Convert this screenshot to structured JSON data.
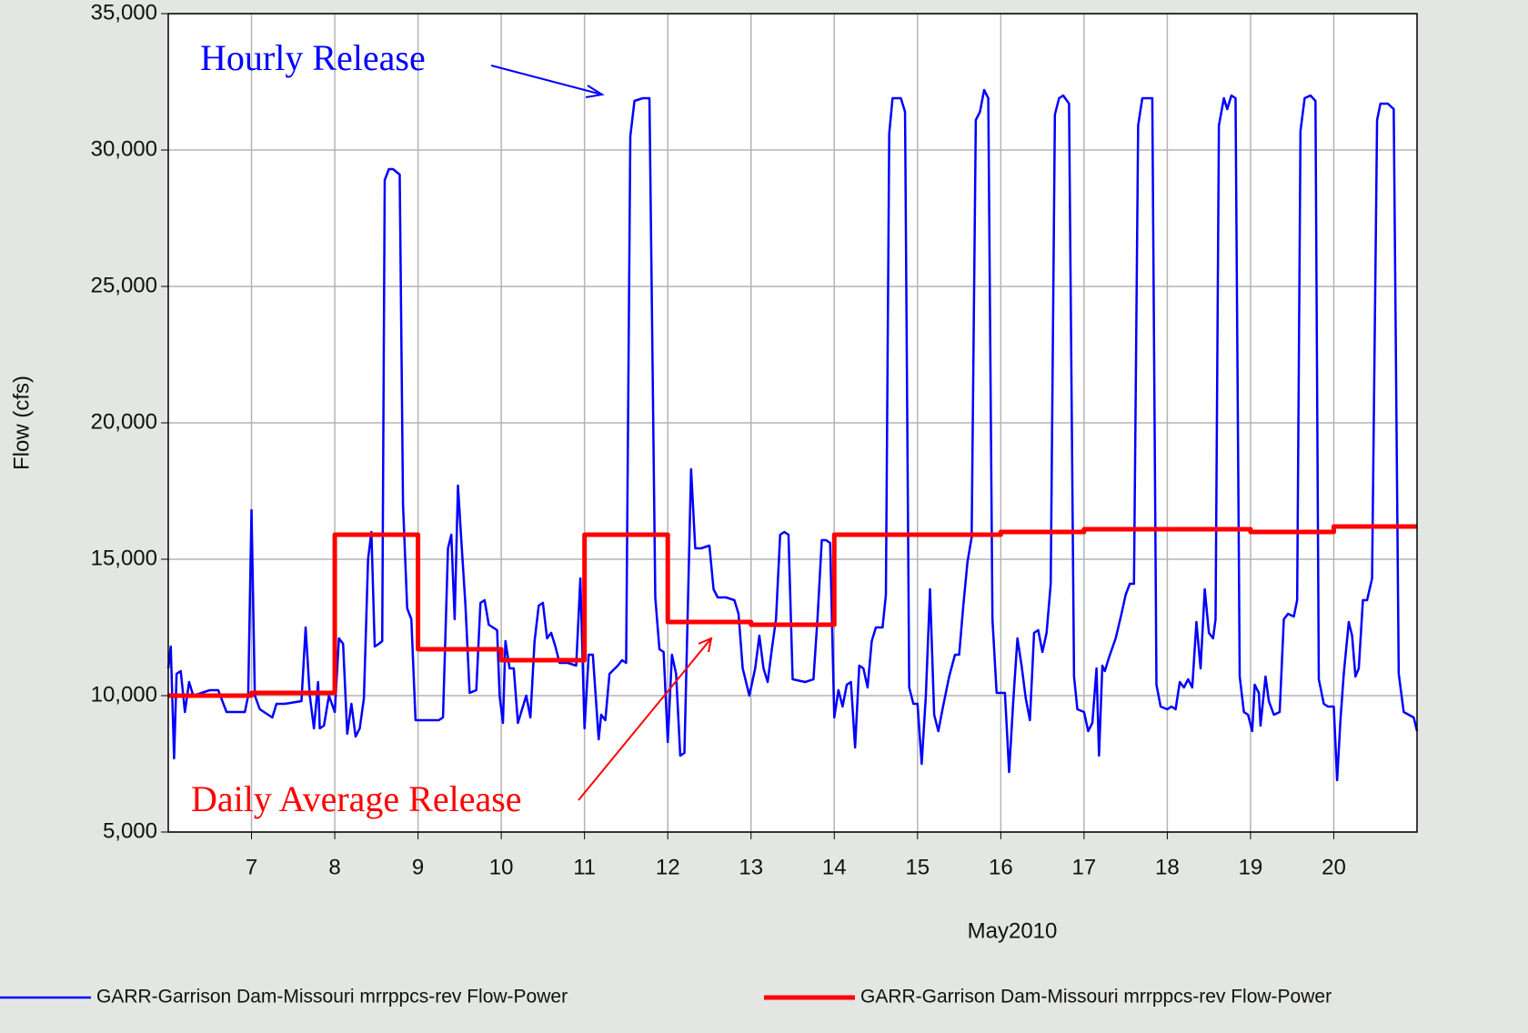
{
  "chart_data": {
    "type": "line",
    "ylabel": "Flow  (cfs)",
    "xlabel": "May2010",
    "xlim": [
      6,
      21
    ],
    "xticks": [
      7,
      8,
      9,
      10,
      11,
      12,
      13,
      14,
      15,
      16,
      17,
      18,
      19,
      20
    ],
    "ylim": [
      5000,
      35000
    ],
    "yticks": [
      {
        "value": 5000,
        "label": "5,000"
      },
      {
        "value": 10000,
        "label": "10,000"
      },
      {
        "value": 15000,
        "label": "15,000"
      },
      {
        "value": 20000,
        "label": "20,000"
      },
      {
        "value": 25000,
        "label": "25,000"
      },
      {
        "value": 30000,
        "label": "30,000"
      },
      {
        "value": 35000,
        "label": "35,000"
      }
    ],
    "grid": true,
    "annotations": [
      {
        "text": "Hourly Release",
        "color": "#0000ff"
      },
      {
        "text": "Daily Average Release",
        "color": "#ff0000"
      }
    ],
    "series": [
      {
        "name": "GARR-Garrison Dam-Missouri mrrppcs-rev Flow-Power",
        "color": "#0000ff",
        "width": 2.5,
        "x": [
          6.0,
          6.03,
          6.07,
          6.1,
          6.15,
          6.2,
          6.25,
          6.3,
          6.4,
          6.5,
          6.6,
          6.7,
          6.8,
          6.92,
          6.96,
          7.0,
          7.04,
          7.1,
          7.2,
          7.25,
          7.3,
          7.4,
          7.6,
          7.65,
          7.7,
          7.75,
          7.8,
          7.82,
          7.87,
          7.93,
          8.0,
          8.05,
          8.1,
          8.15,
          8.2,
          8.25,
          8.3,
          8.35,
          8.4,
          8.44,
          8.48,
          8.53,
          8.57,
          8.6,
          8.65,
          8.7,
          8.78,
          8.82,
          8.87,
          8.92,
          8.97,
          9.1,
          9.25,
          9.3,
          9.36,
          9.4,
          9.44,
          9.48,
          9.52,
          9.57,
          9.62,
          9.7,
          9.75,
          9.8,
          9.85,
          9.9,
          9.95,
          9.98,
          10.02,
          10.05,
          10.1,
          10.15,
          10.2,
          10.25,
          10.3,
          10.35,
          10.4,
          10.45,
          10.5,
          10.55,
          10.6,
          10.65,
          10.7,
          10.8,
          10.9,
          10.95,
          11.0,
          11.05,
          11.1,
          11.17,
          11.2,
          11.25,
          11.3,
          11.4,
          11.45,
          11.5,
          11.55,
          11.6,
          11.7,
          11.78,
          11.85,
          11.9,
          11.95,
          12.0,
          12.05,
          12.1,
          12.15,
          12.2,
          12.28,
          12.33,
          12.4,
          12.5,
          12.55,
          12.6,
          12.7,
          12.8,
          12.85,
          12.9,
          12.98,
          13.05,
          13.1,
          13.15,
          13.2,
          13.25,
          13.3,
          13.35,
          13.4,
          13.45,
          13.5,
          13.65,
          13.75,
          13.8,
          13.85,
          13.9,
          13.95,
          14.0,
          14.05,
          14.1,
          14.15,
          14.2,
          14.25,
          14.3,
          14.35,
          14.4,
          14.45,
          14.5,
          14.58,
          14.62,
          14.66,
          14.7,
          14.8,
          14.85,
          14.9,
          14.95,
          15.0,
          15.05,
          15.1,
          15.15,
          15.2,
          15.25,
          15.3,
          15.38,
          15.45,
          15.5,
          15.55,
          15.6,
          15.65,
          15.7,
          15.75,
          15.8,
          15.85,
          15.9,
          15.95,
          16.05,
          16.1,
          16.15,
          16.2,
          16.25,
          16.3,
          16.35,
          16.4,
          16.45,
          16.5,
          16.55,
          16.6,
          16.65,
          16.7,
          16.75,
          16.82,
          16.88,
          16.92,
          17.0,
          17.05,
          17.1,
          17.15,
          17.18,
          17.22,
          17.25,
          17.3,
          17.38,
          17.45,
          17.5,
          17.55,
          17.6,
          17.65,
          17.7,
          17.75,
          17.82,
          17.87,
          17.92,
          18.0,
          18.05,
          18.1,
          18.15,
          18.2,
          18.25,
          18.3,
          18.35,
          18.4,
          18.45,
          18.5,
          18.55,
          18.58,
          18.62,
          18.68,
          18.72,
          18.77,
          18.82,
          18.87,
          18.92,
          18.97,
          19.02,
          19.05,
          19.1,
          19.12,
          19.18,
          19.22,
          19.28,
          19.35,
          19.4,
          19.45,
          19.52,
          19.56,
          19.6,
          19.65,
          19.72,
          19.78,
          19.82,
          19.88,
          19.93,
          20.0,
          20.04,
          20.08,
          20.12,
          20.18,
          20.22,
          20.26,
          20.3,
          20.35,
          20.4,
          20.46,
          20.52,
          20.56,
          20.65,
          20.72,
          20.78,
          20.84,
          20.9,
          20.96,
          21.0
        ],
        "values": [
          11000,
          11800,
          7700,
          10800,
          10900,
          9400,
          10500,
          10000,
          10100,
          10200,
          10200,
          9400,
          9400,
          9400,
          10000,
          16800,
          10000,
          9500,
          9300,
          9200,
          9700,
          9700,
          9800,
          12500,
          10000,
          8800,
          10500,
          8800,
          8900,
          10000,
          9400,
          12100,
          11900,
          8600,
          9700,
          8500,
          8800,
          9900,
          15000,
          16000,
          11800,
          11900,
          12000,
          28900,
          29300,
          29300,
          29100,
          17000,
          13200,
          12800,
          9100,
          9100,
          9100,
          9200,
          15400,
          15900,
          12800,
          17700,
          15700,
          13300,
          10100,
          10200,
          13400,
          13500,
          12600,
          12500,
          12400,
          10000,
          9000,
          12000,
          11000,
          11000,
          9000,
          9500,
          10000,
          9200,
          12000,
          13300,
          13400,
          12100,
          12300,
          11800,
          11200,
          11200,
          11100,
          14300,
          8800,
          11500,
          11500,
          8400,
          9300,
          9100,
          10800,
          11100,
          11300,
          11200,
          30500,
          31800,
          31900,
          31900,
          13600,
          11700,
          11600,
          8300,
          11500,
          10800,
          7800,
          7900,
          18300,
          15400,
          15400,
          15500,
          13900,
          13600,
          13600,
          13500,
          13000,
          11000,
          10000,
          11000,
          12200,
          11000,
          10500,
          11700,
          12800,
          15900,
          16000,
          15900,
          10600,
          10500,
          10600,
          12900,
          15700,
          15700,
          15600,
          9200,
          10200,
          9600,
          10400,
          10500,
          8100,
          11100,
          11000,
          10300,
          12000,
          12500,
          12500,
          13700,
          30600,
          31900,
          31900,
          31400,
          10300,
          9700,
          9700,
          7500,
          10000,
          13900,
          9300,
          8700,
          9500,
          10700,
          11500,
          11500,
          13300,
          14900,
          15800,
          31100,
          31400,
          32200,
          31900,
          12800,
          10100,
          10100,
          7200,
          9800,
          12100,
          11100,
          9900,
          9100,
          12300,
          12400,
          11600,
          12300,
          14100,
          31300,
          31900,
          32000,
          31700,
          10700,
          9500,
          9400,
          8700,
          9000,
          11000,
          7800,
          11100,
          10900,
          11400,
          12100,
          13000,
          13700,
          14100,
          14100,
          30900,
          31900,
          31900,
          31900,
          10400,
          9600,
          9500,
          9600,
          9500,
          10500,
          10300,
          10600,
          10300,
          12700,
          11000,
          13900,
          12300,
          12100,
          12800,
          30900,
          31900,
          31500,
          32000,
          31900,
          10700,
          9400,
          9300,
          8700,
          10400,
          10100,
          8900,
          10700,
          9800,
          9300,
          9400,
          12800,
          13000,
          12900,
          13500,
          30700,
          31900,
          32000,
          31800,
          10600,
          9700,
          9600,
          9600,
          6900,
          9100,
          10800,
          12700,
          12200,
          10700,
          11000,
          13500,
          13500,
          14300,
          31100,
          31700,
          31700,
          31500,
          10800,
          9400,
          9300,
          9200,
          8700
        ]
      },
      {
        "name": "GARR-Garrison Dam-Missouri mrrppcs-rev Flow-Power",
        "color": "#ff0000",
        "width": 5,
        "step": "post",
        "x": [
          6,
          7,
          8,
          9,
          10,
          11,
          12,
          13,
          14,
          15,
          16,
          17,
          18,
          19,
          20
        ],
        "values": [
          10000,
          10100,
          15900,
          11700,
          11300,
          15900,
          12700,
          12600,
          15900,
          15900,
          16000,
          16100,
          16100,
          16000,
          16200
        ]
      }
    ]
  }
}
